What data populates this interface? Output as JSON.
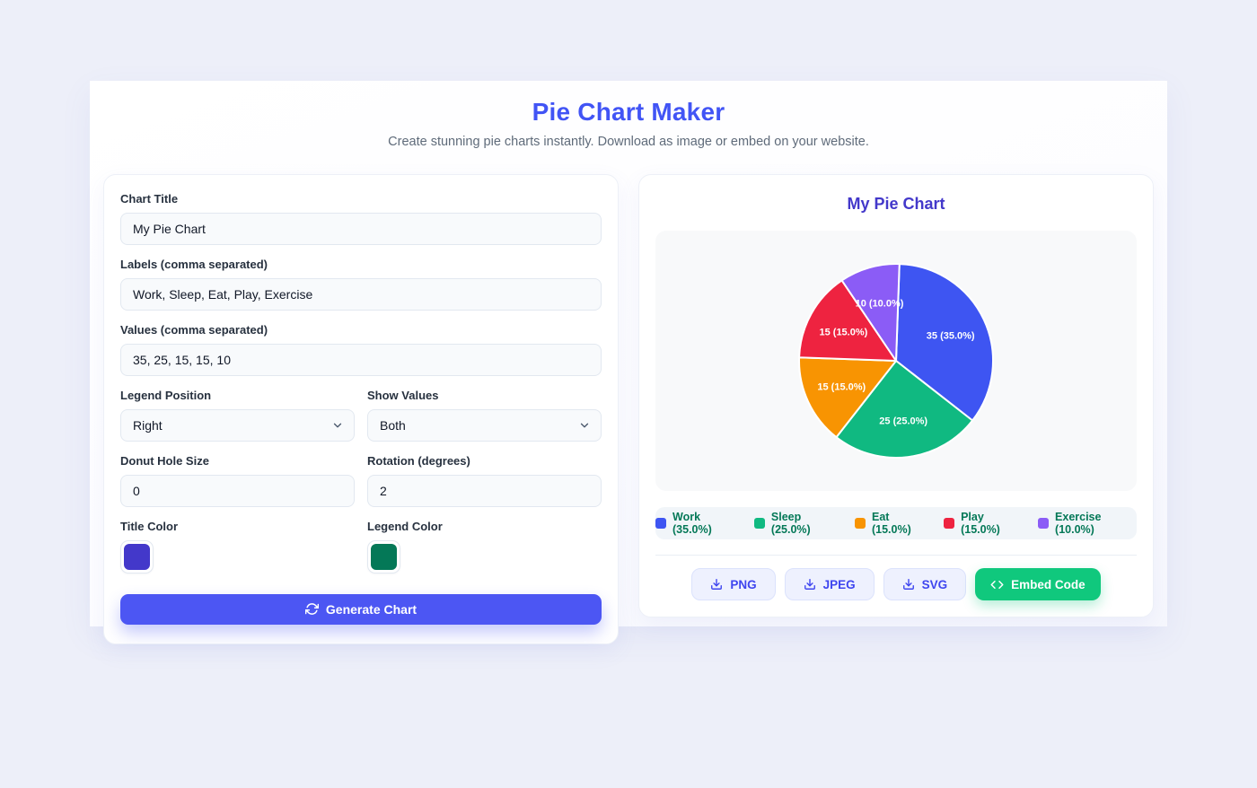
{
  "page": {
    "title": "Pie Chart Maker",
    "subtitle": "Create stunning pie charts instantly. Download as image or embed on your website."
  },
  "form": {
    "chart_title": {
      "label": "Chart Title",
      "value": "My Pie Chart"
    },
    "labels_field": {
      "label": "Labels (comma separated)",
      "value": "Work, Sleep, Eat, Play, Exercise"
    },
    "values_field": {
      "label": "Values (comma separated)",
      "value": "35, 25, 15, 15, 10"
    },
    "legend_position": {
      "label": "Legend Position",
      "value": "Right"
    },
    "show_values": {
      "label": "Show Values",
      "value": "Both"
    },
    "donut_hole": {
      "label": "Donut Hole Size",
      "value": "0"
    },
    "rotation": {
      "label": "Rotation (degrees)",
      "value": "2"
    },
    "title_color": {
      "label": "Title Color",
      "value": "#4338ca"
    },
    "legend_color": {
      "label": "Legend Color",
      "value": "#047857"
    },
    "generate_button": "Generate Chart"
  },
  "preview": {
    "title": "My Pie Chart",
    "buttons": {
      "png": "PNG",
      "jpeg": "JPEG",
      "svg": "SVG",
      "embed": "Embed Code"
    }
  },
  "chart_data": {
    "type": "pie",
    "title": "My Pie Chart",
    "labels": [
      "Work",
      "Sleep",
      "Eat",
      "Play",
      "Exercise"
    ],
    "values": [
      35,
      25,
      15,
      15,
      10
    ],
    "percentages": [
      35.0,
      25.0,
      15.0,
      15.0,
      10.0
    ],
    "slice_value_labels": [
      "35 (35.0%)",
      "25 (25.0%)",
      "15 (15.0%)",
      "15 (15.0%)",
      "10 (10.0%)"
    ],
    "legend_entries": [
      "Work (35.0%)",
      "Sleep (25.0%)",
      "Eat (15.0%)",
      "Play (15.0%)",
      "Exercise (10.0%)"
    ],
    "colors": [
      "#3e55f2",
      "#10b981",
      "#f89402",
      "#ee2340",
      "#8b5cf6"
    ],
    "rotation_degrees": 2,
    "donut_hole": 0,
    "legend_position": "right",
    "show_values": "both",
    "title_color": "#4338ca",
    "legend_text_color": "#047857"
  }
}
